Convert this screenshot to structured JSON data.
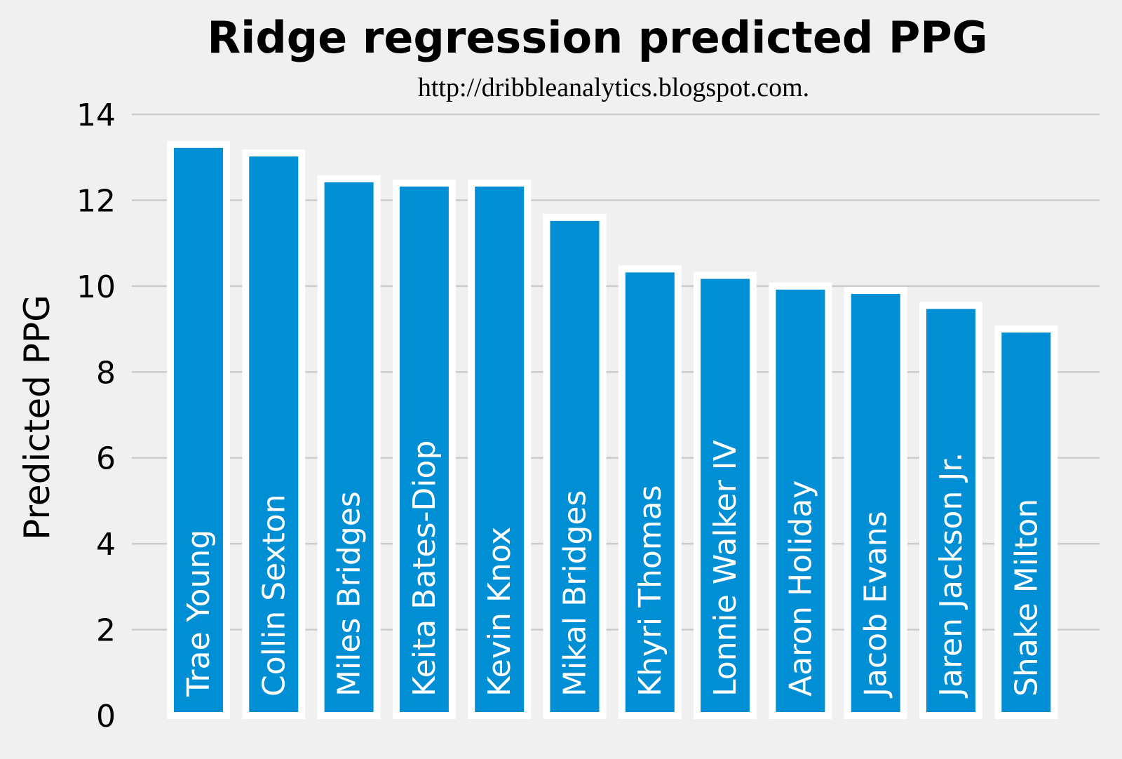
{
  "chart_data": {
    "type": "bar",
    "title": "Ridge regression predicted PPG",
    "subtitle": "http://dribbleanalytics.blogspot.com.",
    "xlabel": "",
    "ylabel": "Predicted PPG",
    "ylim": [
      0,
      14
    ],
    "yticks": [
      0,
      2,
      4,
      6,
      8,
      10,
      12,
      14
    ],
    "grid": true,
    "bar_color": "#008fd5",
    "bar_edge_color": "#ffffff",
    "background_color": "#f0f0f0",
    "categories": [
      "Trae Young",
      "Collin Sexton",
      "Miles Bridges",
      "Keita Bates-Diop",
      "Kevin Knox",
      "Mikal Bridges",
      "Khyri Thomas",
      "Lonnie Walker IV",
      "Aaron Holiday",
      "Jacob Evans",
      "Jaren Jackson Jr.",
      "Shake Milton"
    ],
    "values": [
      13.3,
      13.1,
      12.5,
      12.4,
      12.4,
      11.6,
      10.4,
      10.25,
      10.0,
      9.9,
      9.55,
      9.0
    ]
  }
}
